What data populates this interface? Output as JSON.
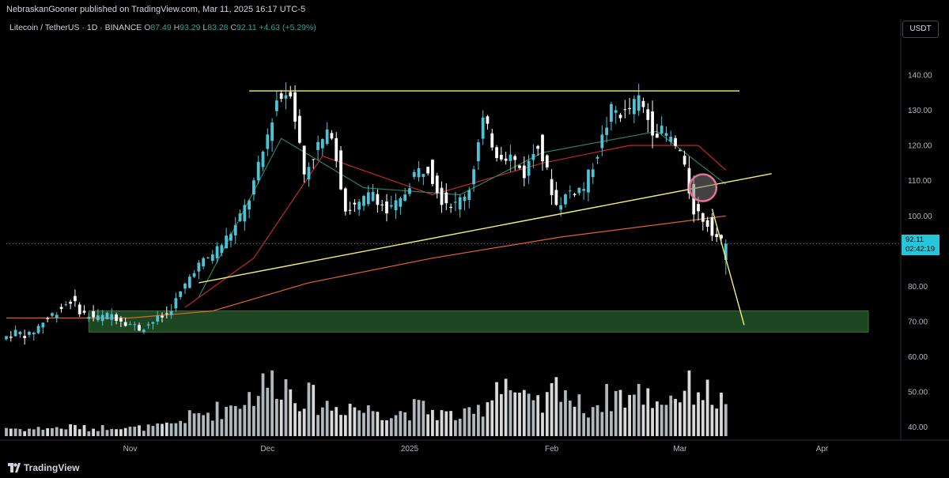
{
  "header": {
    "published_text": "NebraskanGooner published on TradingView.com, Mar 11, 2025 16:17 UTC-5"
  },
  "symbol": {
    "title": "Litecoin / TetherUS · 1D · BINANCE",
    "open_label": "O",
    "open": "87.49",
    "high_label": "H",
    "high": "93.29",
    "low_label": "L",
    "low": "83.28",
    "close_label": "C",
    "close": "92.11",
    "change": "+4.63 (+5.29%)"
  },
  "currency": "USDT",
  "last_price": {
    "price": "92.11",
    "countdown": "02:42:19"
  },
  "footer": {
    "brand": "TradingView"
  },
  "colors": {
    "bull": "#4fc3d6",
    "bear": "#ffffff",
    "trendline": "#f5f07a",
    "ema_short": "#2e7d5b",
    "ema_mid": "#c62828",
    "ema_long": "#e0642a",
    "support_zone": "#1f4a24",
    "circle": "#e57399"
  },
  "chart_data": {
    "type": "candlestick",
    "symbol": "LTCUSDT",
    "interval": "1D",
    "y_axis": {
      "ticks": [
        40,
        50,
        60,
        70,
        80,
        90,
        100,
        110,
        120,
        130,
        140
      ],
      "tick_labels": [
        "40.00",
        "50.00",
        "60.00",
        "70.00",
        "80.00",
        "90.00",
        "100.00",
        "110.00",
        "120.00",
        "130.00",
        "140.00"
      ],
      "range": [
        37,
        151
      ]
    },
    "x_axis": {
      "range": [
        "2024-10-05",
        "2025-04-18"
      ],
      "tick_labels": [
        {
          "label": "Nov",
          "date": "2024-11-01"
        },
        {
          "label": "Dec",
          "date": "2024-12-01"
        },
        {
          "label": "2025",
          "date": "2025-01-01"
        },
        {
          "label": "Feb",
          "date": "2025-02-01"
        },
        {
          "label": "Mar",
          "date": "2025-03-01"
        },
        {
          "label": "Apr",
          "date": "2025-04-01"
        }
      ]
    },
    "candle_closes": [
      {
        "date": "2024-10-05",
        "close": 65
      },
      {
        "date": "2024-10-08",
        "close": 67
      },
      {
        "date": "2024-10-11",
        "close": 66
      },
      {
        "date": "2024-10-14",
        "close": 70
      },
      {
        "date": "2024-10-17",
        "close": 73
      },
      {
        "date": "2024-10-20",
        "close": 76
      },
      {
        "date": "2024-10-23",
        "close": 72
      },
      {
        "date": "2024-10-26",
        "close": 71
      },
      {
        "date": "2024-10-29",
        "close": 72
      },
      {
        "date": "2024-11-01",
        "close": 70
      },
      {
        "date": "2024-11-04",
        "close": 68
      },
      {
        "date": "2024-11-07",
        "close": 70
      },
      {
        "date": "2024-11-10",
        "close": 72
      },
      {
        "date": "2024-11-13",
        "close": 78
      },
      {
        "date": "2024-11-16",
        "close": 85
      },
      {
        "date": "2024-11-19",
        "close": 88
      },
      {
        "date": "2024-11-22",
        "close": 92
      },
      {
        "date": "2024-11-25",
        "close": 97
      },
      {
        "date": "2024-11-28",
        "close": 105
      },
      {
        "date": "2024-12-01",
        "close": 118
      },
      {
        "date": "2024-12-04",
        "close": 133
      },
      {
        "date": "2024-12-07",
        "close": 136
      },
      {
        "date": "2024-12-10",
        "close": 112
      },
      {
        "date": "2024-12-13",
        "close": 120
      },
      {
        "date": "2024-12-16",
        "close": 124
      },
      {
        "date": "2024-12-19",
        "close": 102
      },
      {
        "date": "2024-12-22",
        "close": 103
      },
      {
        "date": "2024-12-25",
        "close": 107
      },
      {
        "date": "2024-12-28",
        "close": 101
      },
      {
        "date": "2024-12-31",
        "close": 104
      },
      {
        "date": "2025-01-03",
        "close": 112
      },
      {
        "date": "2025-01-06",
        "close": 114
      },
      {
        "date": "2025-01-09",
        "close": 105
      },
      {
        "date": "2025-01-12",
        "close": 103
      },
      {
        "date": "2025-01-15",
        "close": 108
      },
      {
        "date": "2025-01-18",
        "close": 127
      },
      {
        "date": "2025-01-21",
        "close": 118
      },
      {
        "date": "2025-01-24",
        "close": 117
      },
      {
        "date": "2025-01-27",
        "close": 112
      },
      {
        "date": "2025-01-30",
        "close": 121
      },
      {
        "date": "2025-02-03",
        "close": 103
      },
      {
        "date": "2025-02-06",
        "close": 107
      },
      {
        "date": "2025-02-09",
        "close": 108
      },
      {
        "date": "2025-02-12",
        "close": 118
      },
      {
        "date": "2025-02-15",
        "close": 130
      },
      {
        "date": "2025-02-18",
        "close": 129
      },
      {
        "date": "2025-02-21",
        "close": 133
      },
      {
        "date": "2025-02-24",
        "close": 125
      },
      {
        "date": "2025-02-27",
        "close": 123
      },
      {
        "date": "2025-03-02",
        "close": 118
      },
      {
        "date": "2025-03-05",
        "close": 102
      },
      {
        "date": "2025-03-08",
        "close": 98
      },
      {
        "date": "2025-03-11",
        "close": 92.11
      }
    ],
    "volume_relative": [
      0.12,
      0.1,
      0.1,
      0.12,
      0.11,
      0.14,
      0.1,
      0.12,
      0.15,
      0.11,
      0.12,
      0.13,
      0.16,
      0.25,
      0.3,
      0.35,
      0.4,
      0.5,
      0.6,
      0.75,
      0.8,
      0.6,
      0.55,
      0.45,
      0.4,
      0.45,
      0.35,
      0.4,
      0.3,
      0.35,
      0.4,
      0.35,
      0.3,
      0.28,
      0.3,
      0.5,
      0.9,
      0.6,
      0.45,
      0.4,
      0.8,
      0.45,
      0.4,
      0.5,
      0.6,
      0.55,
      0.6,
      0.5,
      0.55,
      0.65,
      0.7,
      0.55,
      0.45
    ],
    "annotations": {
      "resistance_price": 135.5,
      "ascending_trendline": {
        "from": {
          "date": "2024-11-16",
          "price": 81
        },
        "to": {
          "date": "2025-03-21",
          "price": 112
        }
      },
      "projection_line": {
        "from": {
          "date": "2025-03-08",
          "price": 102
        },
        "to": {
          "date": "2025-03-15",
          "price": 69
        }
      },
      "support_zone": {
        "from_date": "2024-10-23",
        "to_date": "2025-04-18",
        "low": 67,
        "high": 73
      },
      "breakdown_circle": {
        "date": "2025-03-06",
        "price": 108
      }
    },
    "moving_averages": [
      {
        "points": [
          {
            "date": "2024-10-05",
            "price": 71
          },
          {
            "date": "2024-11-01",
            "price": 71
          },
          {
            "date": "2024-11-19",
            "price": 73
          },
          {
            "date": "2024-12-10",
            "price": 81
          },
          {
            "date": "2025-01-06",
            "price": 88
          },
          {
            "date": "2025-02-03",
            "price": 94
          },
          {
            "date": "2025-03-11",
            "price": 100
          }
        ]
      },
      {
        "points": [
          {
            "date": "2024-11-13",
            "price": 74
          },
          {
            "date": "2024-11-28",
            "price": 88
          },
          {
            "date": "2024-12-13",
            "price": 117
          },
          {
            "date": "2025-01-06",
            "price": 106
          },
          {
            "date": "2025-01-30",
            "price": 115
          },
          {
            "date": "2025-02-18",
            "price": 120
          },
          {
            "date": "2025-03-05",
            "price": 120
          },
          {
            "date": "2025-03-11",
            "price": 113
          }
        ]
      },
      {
        "points": [
          {
            "date": "2024-11-16",
            "price": 77
          },
          {
            "date": "2024-12-04",
            "price": 122
          },
          {
            "date": "2024-12-22",
            "price": 108
          },
          {
            "date": "2025-01-12",
            "price": 106
          },
          {
            "date": "2025-01-30",
            "price": 118
          },
          {
            "date": "2025-02-24",
            "price": 124
          },
          {
            "date": "2025-03-11",
            "price": 109
          }
        ]
      }
    ]
  }
}
